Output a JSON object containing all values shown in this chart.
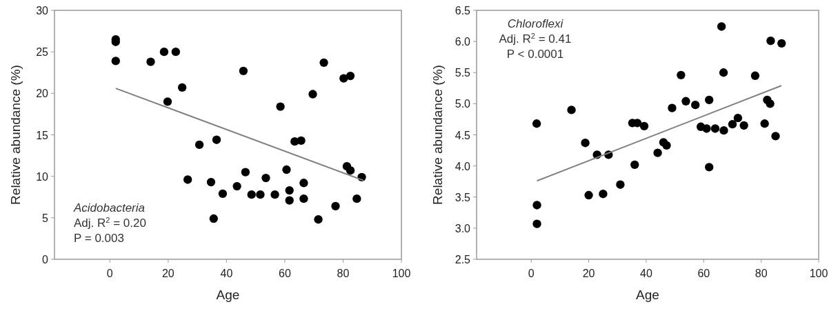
{
  "chart_data": [
    {
      "type": "scatter",
      "xlabel": "Age",
      "ylabel": "Relative abundance (%)",
      "xlim": [
        -19,
        100
      ],
      "xticks": [
        0,
        20,
        40,
        60,
        80,
        100
      ],
      "ylim": [
        0,
        30
      ],
      "yticks": [
        0,
        5,
        10,
        15,
        20,
        25,
        30
      ],
      "grid": false,
      "marker": "circle",
      "annotations": [
        "Acidobacteria",
        "Adj. R$^{2}$ = 0.20",
        "P = 0.003"
      ],
      "series": [
        {
          "color": "#000000",
          "x": [
            2,
            2,
            2,
            14,
            18.6,
            22.6,
            24.8,
            19.8,
            45.8,
            73.4,
            80.2,
            82.5,
            58.5,
            69.6,
            30.7,
            36.6,
            63.4,
            65.6,
            26.7,
            34.7,
            35.6,
            38.7,
            43.6,
            46.5,
            48.6,
            51.6,
            53.5,
            56.6,
            60.6,
            61.6,
            61.6,
            66.5,
            66.5,
            71.5,
            77.4,
            81.3,
            82.5,
            84.7,
            86.4
          ],
          "values": [
            26.5,
            26.2,
            23.9,
            23.8,
            25.0,
            25.0,
            20.7,
            19.0,
            22.7,
            23.7,
            21.8,
            22.1,
            18.4,
            19.9,
            13.8,
            14.4,
            14.2,
            14.3,
            9.6,
            9.3,
            4.9,
            7.9,
            8.8,
            10.5,
            7.8,
            7.8,
            9.8,
            7.8,
            10.8,
            8.3,
            7.1,
            9.2,
            7.3,
            4.8,
            6.4,
            11.2,
            10.7,
            7.3,
            9.9
          ]
        },
        {
          "type": "line",
          "color": "#808080",
          "marker": "none",
          "x": [
            2,
            87
          ],
          "values": [
            20.6,
            9.5
          ]
        }
      ]
    },
    {
      "type": "scatter",
      "xlabel": "Age",
      "ylabel": "Relative abundance (%)",
      "xlim": [
        -19,
        100
      ],
      "xticks": [
        0,
        20,
        40,
        60,
        80,
        100
      ],
      "ylim": [
        2.5,
        6.5
      ],
      "yticks": [
        2.5,
        {
          "value": 3,
          "label": "3.0"
        },
        3.5,
        {
          "value": 4,
          "label": "4.0"
        },
        4.5,
        {
          "value": 5,
          "label": "5.0"
        },
        5.5,
        {
          "value": 6,
          "label": "6.0"
        },
        6.5
      ],
      "grid": false,
      "marker": "circle",
      "annotations": [
        "Chloroflexi",
        "Adj. R$^{2}$ = 0.41",
        "P < 0.0001"
      ],
      "series": [
        {
          "color": "#000000",
          "x": [
            1.9,
            14,
            35.2,
            36.9,
            39.3,
            49,
            52.1,
            53.8,
            57.1,
            61.9,
            66.2,
            66.9,
            59,
            61,
            64,
            67,
            70,
            71.9,
            74,
            77.9,
            81.2,
            82.1,
            83.1,
            83.3,
            87.1,
            85,
            18.8,
            22.9,
            26.9,
            20,
            25,
            31,
            36,
            44,
            46,
            47.1,
            61.9,
            2,
            2
          ],
          "values": [
            4.68,
            4.9,
            4.69,
            4.69,
            4.64,
            4.93,
            5.46,
            5.04,
            4.98,
            5.06,
            6.24,
            5.5,
            4.63,
            4.6,
            4.6,
            4.57,
            4.67,
            4.77,
            4.65,
            5.45,
            4.68,
            5.06,
            5.0,
            6.01,
            5.97,
            4.48,
            4.37,
            4.18,
            4.18,
            3.53,
            3.55,
            3.7,
            4.02,
            4.21,
            4.38,
            4.33,
            3.98,
            3.37,
            3.07
          ]
        },
        {
          "type": "line",
          "color": "#808080",
          "marker": "none",
          "x": [
            2,
            87
          ],
          "values": [
            3.76,
            5.29
          ]
        }
      ]
    }
  ]
}
